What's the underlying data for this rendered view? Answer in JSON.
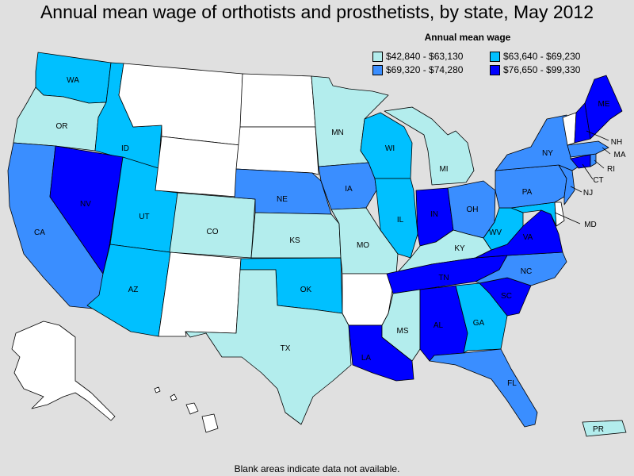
{
  "title": "Annual mean wage of orthotists and prosthetists, by state, May 2012",
  "legend": {
    "title": "Annual mean wage",
    "items": [
      {
        "range": "$42,840 - $63,130",
        "color": "#b3eded"
      },
      {
        "range": "$63,640 - $69,230",
        "color": "#00c0ff"
      },
      {
        "range": "$69,320 - $74,280",
        "color": "#3a8eff"
      },
      {
        "range": "$76,650 - $99,330",
        "color": "#0000ff"
      }
    ]
  },
  "no_data_color": "#ffffff",
  "footnote": "Blank areas indicate data not available.",
  "states": {
    "WA": {
      "label": "WA",
      "tier": 1
    },
    "OR": {
      "label": "OR",
      "tier": 0
    },
    "CA": {
      "label": "CA",
      "tier": 2
    },
    "ID": {
      "label": "ID",
      "tier": 1
    },
    "NV": {
      "label": "NV",
      "tier": 3
    },
    "UT": {
      "label": "UT",
      "tier": 1
    },
    "AZ": {
      "label": "AZ",
      "tier": 1
    },
    "MT": {
      "label": "",
      "tier": null
    },
    "WY": {
      "label": "",
      "tier": null
    },
    "CO": {
      "label": "CO",
      "tier": 0
    },
    "NM": {
      "label": "",
      "tier": null
    },
    "ND": {
      "label": "",
      "tier": null
    },
    "SD": {
      "label": "",
      "tier": null
    },
    "NE": {
      "label": "NE",
      "tier": 2
    },
    "KS": {
      "label": "KS",
      "tier": 0
    },
    "OK": {
      "label": "OK",
      "tier": 1
    },
    "TX": {
      "label": "TX",
      "tier": 0
    },
    "MN": {
      "label": "MN",
      "tier": 0
    },
    "IA": {
      "label": "IA",
      "tier": 2
    },
    "MO": {
      "label": "MO",
      "tier": 0
    },
    "AR": {
      "label": "",
      "tier": null
    },
    "LA": {
      "label": "LA",
      "tier": 3
    },
    "WI": {
      "label": "WI",
      "tier": 1
    },
    "IL": {
      "label": "IL",
      "tier": 1
    },
    "MI": {
      "label": "MI",
      "tier": 0
    },
    "IN": {
      "label": "IN",
      "tier": 3
    },
    "OH": {
      "label": "OH",
      "tier": 2
    },
    "KY": {
      "label": "KY",
      "tier": 0
    },
    "TN": {
      "label": "TN",
      "tier": 3
    },
    "MS": {
      "label": "MS",
      "tier": 0
    },
    "AL": {
      "label": "AL",
      "tier": 3
    },
    "GA": {
      "label": "GA",
      "tier": 1
    },
    "FL": {
      "label": "FL",
      "tier": 2
    },
    "SC": {
      "label": "SC",
      "tier": 3
    },
    "NC": {
      "label": "NC",
      "tier": 2
    },
    "VA": {
      "label": "VA",
      "tier": 3
    },
    "WV": {
      "label": "WV",
      "tier": 1
    },
    "MD": {
      "label": "MD",
      "tier": 1
    },
    "DE": {
      "label": "",
      "tier": null
    },
    "PA": {
      "label": "PA",
      "tier": 2
    },
    "NJ": {
      "label": "NJ",
      "tier": 2
    },
    "NY": {
      "label": "NY",
      "tier": 2
    },
    "CT": {
      "label": "CT",
      "tier": 3
    },
    "RI": {
      "label": "RI",
      "tier": 2
    },
    "MA": {
      "label": "MA",
      "tier": 2
    },
    "VT": {
      "label": "",
      "tier": null
    },
    "NH": {
      "label": "NH",
      "tier": 3
    },
    "ME": {
      "label": "ME",
      "tier": 3
    },
    "AK": {
      "label": "",
      "tier": null
    },
    "HI": {
      "label": "",
      "tier": null
    },
    "PR": {
      "label": "PR",
      "tier": 0
    }
  }
}
